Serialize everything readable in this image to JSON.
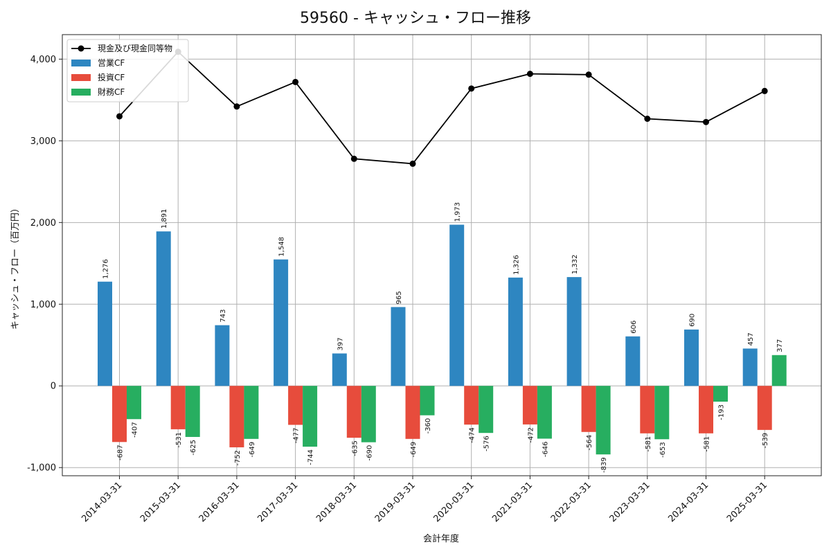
{
  "chart_data": {
    "type": "bar",
    "title": "59560 - キャッシュ・フロー推移",
    "xlabel": "会計年度",
    "ylabel": "キャッシュ・フロー（百万円）",
    "ylim": [
      -1100,
      4300
    ],
    "yticks": [
      -1000,
      0,
      1000,
      2000,
      3000,
      4000
    ],
    "ytick_labels": [
      "-1,000",
      "0",
      "1,000",
      "2,000",
      "3,000",
      "4,000"
    ],
    "grid": true,
    "legend_position": "top-left",
    "categories": [
      "2014-03-31",
      "2015-03-31",
      "2016-03-31",
      "2017-03-31",
      "2018-03-31",
      "2019-03-31",
      "2020-03-31",
      "2021-03-31",
      "2022-03-31",
      "2023-03-31",
      "2024-03-31",
      "2025-03-31"
    ],
    "series": [
      {
        "name": "営業CF",
        "kind": "bar",
        "color": "#2e86c1",
        "values": [
          1276,
          1891,
          743,
          1548,
          397,
          965,
          1973,
          1326,
          1332,
          606,
          690,
          457
        ],
        "value_labels": [
          "1,276",
          "1,891",
          "743",
          "1,548",
          "397",
          "965",
          "1,973",
          "1,326",
          "1,332",
          "606",
          "690",
          "457"
        ]
      },
      {
        "name": "投資CF",
        "kind": "bar",
        "color": "#e74c3c",
        "values": [
          -687,
          -531,
          -752,
          -477,
          -635,
          -649,
          -474,
          -472,
          -564,
          -581,
          -581,
          -539
        ],
        "value_labels": [
          "-687",
          "-531",
          "-752",
          "-477",
          "-635",
          "-649",
          "-474",
          "-472",
          "-564",
          "-581",
          "-581",
          "-539"
        ]
      },
      {
        "name": "財務CF",
        "kind": "bar",
        "color": "#27ae60",
        "values": [
          -407,
          -625,
          -649,
          -744,
          -690,
          -360,
          -576,
          -646,
          -839,
          -653,
          -193,
          377
        ],
        "value_labels": [
          "-407",
          "-625",
          "-649",
          "-744",
          "-690",
          "-360",
          "-576",
          "-646",
          "-839",
          "-653",
          "-193",
          "377"
        ]
      },
      {
        "name": "現金及び現金同等物",
        "kind": "line",
        "color": "#000000",
        "values": [
          3300,
          4090,
          3420,
          3720,
          2780,
          2720,
          3640,
          3820,
          3810,
          3270,
          3230,
          3610
        ]
      }
    ]
  }
}
